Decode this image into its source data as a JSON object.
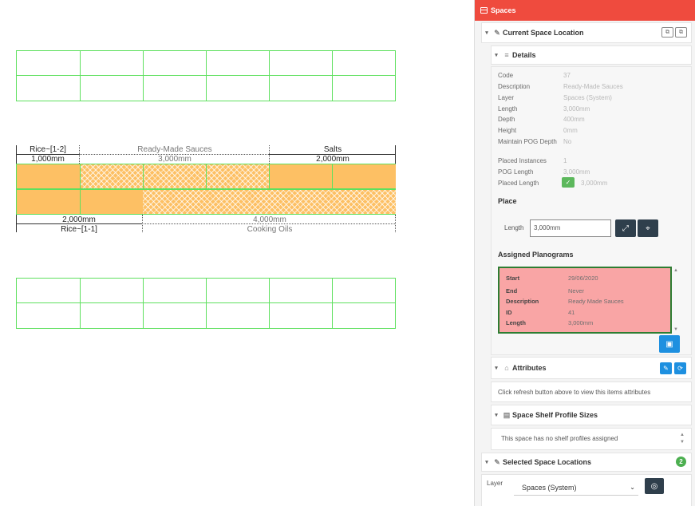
{
  "planogram": {
    "top_labels": {
      "rice_upper": "Rice~[1-2]",
      "ready_made": "Ready-Made Sauces",
      "salts": "Salts",
      "rice_upper_len": "1,000mm",
      "ready_made_len": "3,000mm",
      "salts_len": "2,000mm"
    },
    "bottom_labels": {
      "rice_lower_len": "2,000mm",
      "cooking_oils_len": "4,000mm",
      "rice_lower": "Rice~[1-1]",
      "cooking_oils": "Cooking Oils"
    },
    "colors": {
      "shelf_border": "#5ee05e",
      "product_fill": "#fdc064"
    }
  },
  "panel": {
    "header": "Spaces",
    "current_location": "Current Space Location",
    "details_title": "Details",
    "details": [
      {
        "label": "Code",
        "value": "37"
      },
      {
        "label": "Description",
        "value": "Ready-Made Sauces"
      },
      {
        "label": "Layer",
        "value": "Spaces (System)"
      },
      {
        "label": "Length",
        "value": "3,000mm"
      },
      {
        "label": "Depth",
        "value": "400mm"
      },
      {
        "label": "Height",
        "value": "0mm"
      },
      {
        "label": "Maintain POG Depth",
        "value": "No"
      },
      {
        "label": "Placed Instances",
        "value": "1"
      },
      {
        "label": "POG Length",
        "value": "3,000mm"
      },
      {
        "label": "Placed Length",
        "value": "3,000mm"
      }
    ],
    "place_title": "Place",
    "length_label": "Length",
    "length_value": "3,000mm",
    "assigned_title": "Assigned Planograms",
    "assigned": [
      {
        "label": "Start",
        "value": "29/06/2020"
      },
      {
        "label": "End",
        "value": "Never"
      },
      {
        "label": "Description",
        "value": "Ready Made Sauces"
      },
      {
        "label": "ID",
        "value": "41"
      },
      {
        "label": "Length",
        "value": "3,000mm"
      }
    ],
    "attributes_title": "Attributes",
    "attributes_msg": "Click refresh button above to view this items attributes",
    "shelf_profiles_title": "Space Shelf Profile Sizes",
    "shelf_profiles_msg": "This space has no shelf profiles assigned",
    "selected_title": "Selected Space Locations",
    "selected_count": "2",
    "layer_label": "Layer",
    "layer_value": "Spaces (System)",
    "colors": {
      "header": "#ef4b3e",
      "accent_blue": "#1e90e0",
      "assigned_bg": "#f9a5a5"
    }
  }
}
